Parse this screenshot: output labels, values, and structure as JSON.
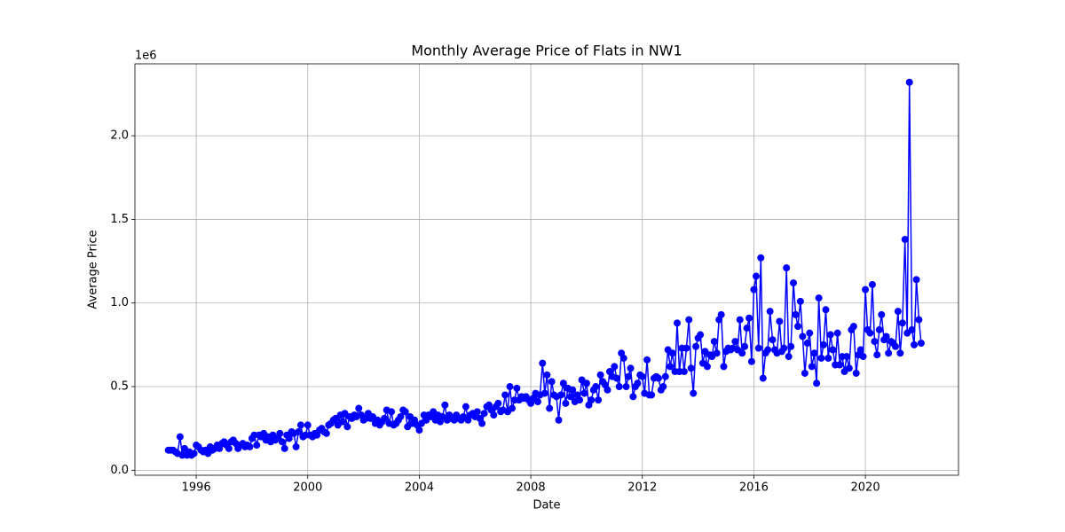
{
  "chart_data": {
    "type": "line",
    "title": "Monthly Average Price of Flats in NW1",
    "x_label": "Date",
    "y_label": "Average Price",
    "y_offset_label": "1e6",
    "color": "#0000ff",
    "grid": true,
    "xlim": [
      1993.8,
      2023.34
    ],
    "xticks": [
      1996,
      2000,
      2004,
      2008,
      2012,
      2016,
      2020
    ],
    "ylim": [
      -0.03,
      2.43
    ],
    "yticks": [
      {
        "value": 0,
        "label": "0.0"
      },
      0.5,
      {
        "value": 1,
        "label": "1.0"
      },
      1.5,
      {
        "value": 2,
        "label": "2.0"
      }
    ],
    "x": [
      1995.0,
      1995.08,
      1995.17,
      1995.25,
      1995.33,
      1995.42,
      1995.5,
      1995.58,
      1995.67,
      1995.75,
      1995.83,
      1995.92,
      1996.0,
      1996.08,
      1996.17,
      1996.25,
      1996.33,
      1996.42,
      1996.5,
      1996.58,
      1996.67,
      1996.75,
      1996.83,
      1996.92,
      1997.0,
      1997.08,
      1997.17,
      1997.25,
      1997.33,
      1997.42,
      1997.5,
      1997.58,
      1997.67,
      1997.75,
      1997.83,
      1997.92,
      1998.0,
      1998.08,
      1998.17,
      1998.25,
      1998.33,
      1998.42,
      1998.5,
      1998.58,
      1998.67,
      1998.75,
      1998.83,
      1998.92,
      1999.0,
      1999.08,
      1999.17,
      1999.25,
      1999.33,
      1999.42,
      1999.5,
      1999.58,
      1999.67,
      1999.75,
      1999.83,
      1999.92,
      2000.0,
      2000.08,
      2000.17,
      2000.25,
      2000.33,
      2000.42,
      2000.5,
      2000.58,
      2000.67,
      2000.75,
      2000.83,
      2000.92,
      2001.0,
      2001.08,
      2001.17,
      2001.25,
      2001.33,
      2001.42,
      2001.5,
      2001.58,
      2001.67,
      2001.75,
      2001.83,
      2001.92,
      2002.0,
      2002.08,
      2002.17,
      2002.25,
      2002.33,
      2002.42,
      2002.5,
      2002.58,
      2002.67,
      2002.75,
      2002.83,
      2002.92,
      2003.0,
      2003.08,
      2003.17,
      2003.25,
      2003.33,
      2003.42,
      2003.5,
      2003.58,
      2003.67,
      2003.75,
      2003.83,
      2003.92,
      2004.0,
      2004.08,
      2004.17,
      2004.25,
      2004.33,
      2004.42,
      2004.5,
      2004.58,
      2004.67,
      2004.75,
      2004.83,
      2004.92,
      2005.0,
      2005.08,
      2005.17,
      2005.25,
      2005.33,
      2005.42,
      2005.5,
      2005.58,
      2005.67,
      2005.75,
      2005.83,
      2005.92,
      2006.0,
      2006.08,
      2006.17,
      2006.25,
      2006.33,
      2006.42,
      2006.5,
      2006.58,
      2006.67,
      2006.75,
      2006.83,
      2006.92,
      2007.0,
      2007.08,
      2007.17,
      2007.25,
      2007.33,
      2007.42,
      2007.5,
      2007.58,
      2007.67,
      2007.75,
      2007.83,
      2007.92,
      2008.0,
      2008.08,
      2008.17,
      2008.25,
      2008.33,
      2008.42,
      2008.5,
      2008.58,
      2008.67,
      2008.75,
      2008.83,
      2008.92,
      2009.0,
      2009.08,
      2009.17,
      2009.25,
      2009.33,
      2009.42,
      2009.5,
      2009.58,
      2009.67,
      2009.75,
      2009.83,
      2009.92,
      2010.0,
      2010.08,
      2010.17,
      2010.25,
      2010.33,
      2010.42,
      2010.5,
      2010.58,
      2010.67,
      2010.75,
      2010.83,
      2010.92,
      2011.0,
      2011.08,
      2011.17,
      2011.25,
      2011.33,
      2011.42,
      2011.5,
      2011.58,
      2011.67,
      2011.75,
      2011.83,
      2011.92,
      2012.0,
      2012.08,
      2012.17,
      2012.25,
      2012.33,
      2012.42,
      2012.5,
      2012.58,
      2012.67,
      2012.75,
      2012.83,
      2012.92,
      2013.0,
      2013.08,
      2013.17,
      2013.25,
      2013.33,
      2013.42,
      2013.5,
      2013.58,
      2013.67,
      2013.75,
      2013.83,
      2013.92,
      2014.0,
      2014.08,
      2014.17,
      2014.25,
      2014.33,
      2014.42,
      2014.5,
      2014.58,
      2014.67,
      2014.75,
      2014.83,
      2014.92,
      2015.0,
      2015.08,
      2015.17,
      2015.25,
      2015.33,
      2015.42,
      2015.5,
      2015.58,
      2015.67,
      2015.75,
      2015.83,
      2015.92,
      2016.0,
      2016.08,
      2016.17,
      2016.25,
      2016.33,
      2016.42,
      2016.5,
      2016.58,
      2016.67,
      2016.75,
      2016.83,
      2016.92,
      2017.0,
      2017.08,
      2017.17,
      2017.25,
      2017.33,
      2017.42,
      2017.5,
      2017.58,
      2017.67,
      2017.75,
      2017.83,
      2017.92,
      2018.0,
      2018.08,
      2018.17,
      2018.25,
      2018.33,
      2018.42,
      2018.5,
      2018.58,
      2018.67,
      2018.75,
      2018.83,
      2018.92,
      2019.0,
      2019.08,
      2019.17,
      2019.25,
      2019.33,
      2019.42,
      2019.5,
      2019.58,
      2019.67,
      2019.75,
      2019.83,
      2019.92,
      2020.0,
      2020.08,
      2020.17,
      2020.25,
      2020.33,
      2020.42,
      2020.5,
      2020.58,
      2020.67,
      2020.75,
      2020.83,
      2020.92,
      2021.0,
      2021.08,
      2021.17,
      2021.25,
      2021.33,
      2021.42,
      2021.5,
      2021.58,
      2021.67,
      2021.75,
      2021.83,
      2021.92,
      2022.0
    ],
    "values": [
      0.12,
      0.12,
      0.12,
      0.11,
      0.1,
      0.2,
      0.09,
      0.13,
      0.09,
      0.11,
      0.09,
      0.1,
      0.15,
      0.14,
      0.12,
      0.11,
      0.12,
      0.1,
      0.14,
      0.12,
      0.13,
      0.15,
      0.13,
      0.16,
      0.17,
      0.15,
      0.13,
      0.17,
      0.18,
      0.16,
      0.13,
      0.15,
      0.16,
      0.14,
      0.15,
      0.14,
      0.19,
      0.21,
      0.15,
      0.21,
      0.2,
      0.22,
      0.18,
      0.2,
      0.17,
      0.21,
      0.18,
      0.19,
      0.22,
      0.17,
      0.13,
      0.21,
      0.19,
      0.23,
      0.22,
      0.14,
      0.23,
      0.27,
      0.2,
      0.21,
      0.27,
      0.21,
      0.2,
      0.22,
      0.21,
      0.24,
      0.25,
      0.23,
      0.22,
      0.27,
      0.28,
      0.3,
      0.31,
      0.27,
      0.33,
      0.29,
      0.34,
      0.26,
      0.32,
      0.31,
      0.33,
      0.32,
      0.37,
      0.33,
      0.3,
      0.31,
      0.34,
      0.31,
      0.32,
      0.28,
      0.3,
      0.27,
      0.29,
      0.31,
      0.36,
      0.28,
      0.35,
      0.27,
      0.28,
      0.3,
      0.32,
      0.36,
      0.35,
      0.26,
      0.32,
      0.28,
      0.3,
      0.27,
      0.24,
      0.28,
      0.33,
      0.3,
      0.33,
      0.32,
      0.35,
      0.3,
      0.33,
      0.29,
      0.32,
      0.39,
      0.3,
      0.33,
      0.31,
      0.3,
      0.33,
      0.31,
      0.3,
      0.32,
      0.38,
      0.3,
      0.33,
      0.34,
      0.32,
      0.35,
      0.31,
      0.28,
      0.34,
      0.38,
      0.39,
      0.36,
      0.33,
      0.38,
      0.4,
      0.35,
      0.36,
      0.45,
      0.35,
      0.5,
      0.37,
      0.42,
      0.49,
      0.42,
      0.44,
      0.43,
      0.44,
      0.42,
      0.4,
      0.43,
      0.46,
      0.41,
      0.45,
      0.64,
      0.46,
      0.57,
      0.37,
      0.53,
      0.45,
      0.44,
      0.3,
      0.45,
      0.52,
      0.4,
      0.49,
      0.44,
      0.48,
      0.41,
      0.45,
      0.42,
      0.54,
      0.46,
      0.52,
      0.39,
      0.42,
      0.48,
      0.5,
      0.42,
      0.57,
      0.53,
      0.51,
      0.48,
      0.59,
      0.56,
      0.62,
      0.55,
      0.5,
      0.7,
      0.67,
      0.5,
      0.56,
      0.61,
      0.44,
      0.5,
      0.52,
      0.57,
      0.56,
      0.46,
      0.66,
      0.45,
      0.45,
      0.55,
      0.56,
      0.55,
      0.48,
      0.5,
      0.56,
      0.72,
      0.62,
      0.7,
      0.59,
      0.88,
      0.59,
      0.73,
      0.59,
      0.73,
      0.9,
      0.61,
      0.46,
      0.74,
      0.79,
      0.81,
      0.64,
      0.71,
      0.62,
      0.69,
      0.68,
      0.77,
      0.7,
      0.9,
      0.93,
      0.62,
      0.71,
      0.73,
      0.72,
      0.73,
      0.77,
      0.72,
      0.9,
      0.7,
      0.74,
      0.85,
      0.91,
      0.65,
      1.08,
      1.16,
      0.73,
      1.27,
      0.55,
      0.7,
      0.72,
      0.95,
      0.78,
      0.72,
      0.7,
      0.89,
      0.71,
      0.73,
      1.21,
      0.68,
      0.74,
      1.12,
      0.93,
      0.86,
      1.01,
      0.8,
      0.58,
      0.76,
      0.82,
      0.62,
      0.7,
      0.52,
      1.03,
      0.67,
      0.75,
      0.96,
      0.67,
      0.81,
      0.72,
      0.63,
      0.82,
      0.63,
      0.68,
      0.59,
      0.68,
      0.61,
      0.84,
      0.86,
      0.58,
      0.69,
      0.72,
      0.68,
      1.08,
      0.84,
      0.82,
      1.11,
      0.77,
      0.69,
      0.84,
      0.93,
      0.78,
      0.8,
      0.7,
      0.77,
      0.76,
      0.74,
      0.95,
      0.7,
      0.88,
      1.38,
      0.82,
      2.32,
      0.84,
      0.75,
      1.14,
      0.9,
      0.76
    ]
  }
}
